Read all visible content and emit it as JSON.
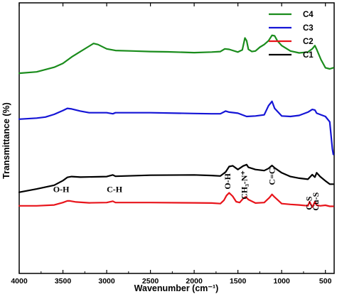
{
  "chart_data": {
    "type": "line",
    "title": "",
    "xlabel": "Wavenumber (cm⁻¹)",
    "ylabel": "Transmittance (%)",
    "xlim": [
      4000,
      400
    ],
    "x_reversed": true,
    "xticks": [
      4000,
      3500,
      3000,
      2500,
      2000,
      1500,
      1000,
      500
    ],
    "y_tick_labels": "none",
    "grid": false,
    "legend_position": "top-right",
    "legend_order": [
      "C4",
      "C3",
      "C2",
      "C1"
    ],
    "series": [
      {
        "name": "C1",
        "color": "#000000",
        "x": [
          4000,
          3800,
          3600,
          3500,
          3450,
          3400,
          3300,
          3000,
          2930,
          2900,
          2800,
          2500,
          2000,
          1800,
          1700,
          1640,
          1600,
          1560,
          1500,
          1440,
          1400,
          1380,
          1300,
          1200,
          1150,
          1110,
          1080,
          1000,
          900,
          800,
          700,
          650,
          620,
          600,
          560,
          500,
          450,
          410
        ],
        "y": [
          0.3,
          0.312,
          0.326,
          0.343,
          0.355,
          0.358,
          0.356,
          0.358,
          0.364,
          0.359,
          0.36,
          0.363,
          0.364,
          0.362,
          0.36,
          0.375,
          0.395,
          0.398,
          0.384,
          0.397,
          0.402,
          0.392,
          0.384,
          0.38,
          0.388,
          0.399,
          0.39,
          0.372,
          0.358,
          0.352,
          0.348,
          0.365,
          0.356,
          0.372,
          0.358,
          0.342,
          0.33,
          0.33
        ]
      },
      {
        "name": "C2",
        "color": "#e8141b",
        "x": [
          4000,
          3800,
          3600,
          3500,
          3450,
          3420,
          3350,
          3200,
          3000,
          2930,
          2900,
          2800,
          2500,
          2000,
          1800,
          1700,
          1660,
          1630,
          1600,
          1560,
          1520,
          1480,
          1440,
          1410,
          1380,
          1300,
          1200,
          1140,
          1110,
          1080,
          1000,
          900,
          800,
          700,
          680,
          650,
          620,
          600,
          560,
          500,
          450,
          410
        ],
        "y": [
          0.25,
          0.25,
          0.253,
          0.262,
          0.268,
          0.268,
          0.264,
          0.261,
          0.262,
          0.267,
          0.262,
          0.262,
          0.262,
          0.261,
          0.26,
          0.258,
          0.27,
          0.288,
          0.298,
          0.285,
          0.265,
          0.262,
          0.277,
          0.283,
          0.273,
          0.26,
          0.262,
          0.28,
          0.292,
          0.282,
          0.258,
          0.255,
          0.253,
          0.25,
          0.265,
          0.245,
          0.265,
          0.252,
          0.25,
          0.252,
          0.248,
          0.248
        ]
      },
      {
        "name": "C3",
        "color": "#1515d6",
        "x": [
          4000,
          3800,
          3700,
          3600,
          3500,
          3450,
          3400,
          3300,
          3200,
          3000,
          2930,
          2900,
          2800,
          2500,
          2000,
          1800,
          1700,
          1640,
          1600,
          1500,
          1400,
          1300,
          1200,
          1150,
          1110,
          1080,
          1000,
          900,
          800,
          700,
          650,
          620,
          600,
          500,
          450,
          420,
          410
        ],
        "y": [
          0.57,
          0.574,
          0.578,
          0.588,
          0.602,
          0.61,
          0.608,
          0.6,
          0.594,
          0.594,
          0.59,
          0.594,
          0.594,
          0.594,
          0.591,
          0.59,
          0.59,
          0.6,
          0.596,
          0.592,
          0.58,
          0.582,
          0.586,
          0.62,
          0.636,
          0.61,
          0.582,
          0.58,
          0.584,
          0.596,
          0.606,
          0.604,
          0.592,
          0.58,
          0.56,
          0.46,
          0.44
        ]
      },
      {
        "name": "C4",
        "color": "#1a8c1c",
        "x": [
          4000,
          3800,
          3600,
          3500,
          3400,
          3300,
          3200,
          3150,
          3100,
          3000,
          2900,
          2700,
          2500,
          2300,
          2000,
          1800,
          1700,
          1650,
          1600,
          1500,
          1450,
          1420,
          1400,
          1380,
          1340,
          1300,
          1250,
          1200,
          1150,
          1110,
          1080,
          1050,
          1000,
          900,
          800,
          700,
          650,
          620,
          600,
          550,
          500,
          450,
          410
        ],
        "y": [
          0.74,
          0.745,
          0.762,
          0.776,
          0.8,
          0.82,
          0.84,
          0.85,
          0.846,
          0.83,
          0.824,
          0.822,
          0.82,
          0.819,
          0.816,
          0.818,
          0.82,
          0.83,
          0.828,
          0.818,
          0.826,
          0.87,
          0.86,
          0.828,
          0.82,
          0.822,
          0.836,
          0.846,
          0.86,
          0.88,
          0.878,
          0.86,
          0.842,
          0.822,
          0.815,
          0.818,
          0.83,
          0.842,
          0.828,
          0.79,
          0.76,
          0.756,
          0.76
        ]
      }
    ],
    "annotations": [
      {
        "text": "O-H",
        "x": 3520,
        "y": 0.3,
        "rotate": false
      },
      {
        "text": "C-H",
        "x": 2910,
        "y": 0.3,
        "rotate": false
      },
      {
        "text": "O-H",
        "x": 1620,
        "y": 0.37,
        "rotate": true
      },
      {
        "text": "CH₃-N⁺",
        "x": 1430,
        "y": 0.38,
        "rotate": true
      },
      {
        "text": "C=C",
        "x": 1110,
        "y": 0.39,
        "rotate": true
      },
      {
        "text": "C-S",
        "x": 690,
        "y": 0.285,
        "rotate": true
      },
      {
        "text": "Cu-S",
        "x": 610,
        "y": 0.3,
        "rotate": true
      }
    ]
  }
}
